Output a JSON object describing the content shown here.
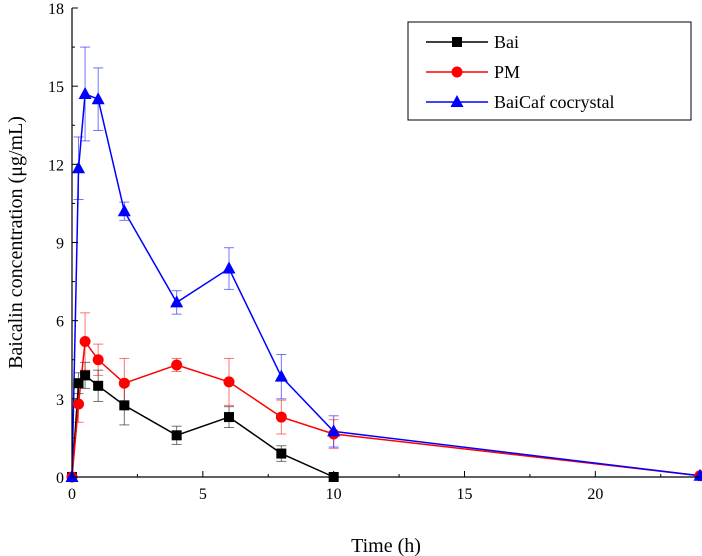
{
  "chart_data": {
    "type": "line",
    "title": "",
    "xlabel": "Time (h)",
    "ylabel": "Baicalin concentration (μg/mL)",
    "xlim": [
      0,
      24
    ],
    "ylim": [
      0,
      18
    ],
    "xticks": [
      0,
      5,
      10,
      15,
      20
    ],
    "yticks": [
      0,
      3,
      6,
      9,
      12,
      15,
      18
    ],
    "grid": false,
    "legend_position": "top-right",
    "series": [
      {
        "name": "Bai",
        "color": "#000000",
        "marker": "square",
        "x": [
          0,
          0.25,
          0.5,
          1,
          2,
          4,
          6,
          8,
          10
        ],
        "y": [
          0,
          3.6,
          3.9,
          3.5,
          2.75,
          1.6,
          2.3,
          0.9,
          0
        ],
        "err": [
          0,
          0.4,
          0.5,
          0.6,
          0.75,
          0.35,
          0.4,
          0.3,
          0
        ]
      },
      {
        "name": "PM",
        "color": "#ff0000",
        "marker": "circle",
        "x": [
          0,
          0.25,
          0.5,
          1,
          2,
          4,
          6,
          8,
          10,
          24
        ],
        "y": [
          0,
          2.8,
          5.2,
          4.5,
          3.6,
          4.3,
          3.65,
          2.3,
          1.65,
          0.05
        ],
        "err": [
          0,
          0.7,
          1.1,
          0.6,
          0.95,
          0.25,
          0.9,
          0.65,
          0.55,
          0
        ]
      },
      {
        "name": "BaiCaf cocrystal",
        "color": "#0000ff",
        "marker": "triangle",
        "x": [
          0,
          0.25,
          0.5,
          1,
          2,
          4,
          6,
          8,
          10,
          24
        ],
        "y": [
          0,
          11.85,
          14.7,
          14.5,
          10.2,
          6.7,
          8.0,
          3.85,
          1.75,
          0.05
        ],
        "err": [
          0,
          1.2,
          1.8,
          1.2,
          0.35,
          0.45,
          0.8,
          0.85,
          0.6,
          0
        ]
      }
    ]
  }
}
